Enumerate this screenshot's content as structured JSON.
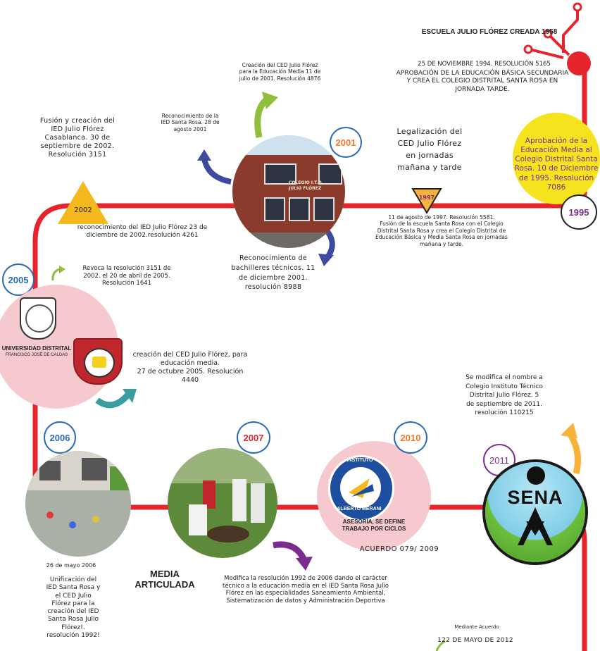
{
  "header": {
    "school_title": "ESCUELA JULIO FLÓREZ  CREADA 1958"
  },
  "colors": {
    "timeline_red": "#e5242b",
    "pink_circle": "#f6c9ce",
    "yellow": "#f5e31d",
    "purple": "#7b2d8e",
    "blue": "#2a6bb5",
    "green": "#8fbf3d",
    "teal": "#3a9ea0",
    "orange": "#f7b23a",
    "navy": "#3d4aa0"
  },
  "events": {
    "e1994_date": "25 DE NOVIEMBRE 1994. RESOLUCIÓN 5165",
    "e1994_text": "APROBACIÓN DE LA EDUCACIÓN BÁSICA SECUNDARIA\nY CREA EL COLEGIO DISTRITAL SANTA ROSA EN\nJORNADA TARDE.",
    "e1995_text": "Aprobación de la Educación Media al Colegio Distrital Santa Rosa. 10 de Diciembre de 1995. Resolución 7086",
    "e1995_year": "1995",
    "e1997_legal": "Legalización del\nCED Julio Flórez\nen jornadas\nmañana y tarde",
    "e1997_year": "1997",
    "e1997_text": "11 de agosto de 1997. Resolución 5581.\nFusión de la escuela Santa Rosa con el Colegio\nDistrital Santa Rosa y crea el Colegio Distrital de\nEducación Básica y Media Santa Rosa en jornadas\nmañana y tarde.",
    "e2001_year": "2001",
    "e2001_creation": "Creación del CED Julio Flórez\npara la Educación Media 11 de\njulio de 2001. Resolución 4876",
    "e2001_recognition": "Reconocimiento de la\nIED Santa Rosa. 28 de\nagosto 2001",
    "e2001_bachilleres": "Reconocimiento de\nbachilleres técnicos. 11\nde diciembre 2001.\nresolución 8988",
    "e2002_fusion": "Fusión y creación del\nIED Julio Flórez\nCasablanca.  30 de\nseptiembre de  2002.\nResolución 3151",
    "e2002_year": "2002",
    "e2002_recognition": "reconocimiento del IED Julio Flórez  23 de\ndiciembre de 2002.resolución 4261",
    "e2005_year": "2005",
    "e2005_revoke": "Revoca la resolución 3151 de\n2002. el 20 de abril de 2005.\nResolución 1641",
    "e2005_creation": "creación del CED Julio Flórez, para\neducación media.\n27 de octubre 2005. Resolución\n4440",
    "e2006_year": "2006",
    "e2006_date": "26 de mayo 2006",
    "e2006_text": "Unificación del\nIED Santa Rosa y\nel CED Julio\nFlórez para la\ncreación del IED\nSanta Rosa Julio\nFlórez!.\nresolución 1992!",
    "e2007_year": "2007",
    "media_articulada": "MEDIA\nARTICULADA",
    "e2007_text": "Modifica la resolución 1992 de 2006  dando el carácter\ntécnico a la educación media en el IED Santa Rosa Julio\nFlórez en las especialidades Saneamiento Ambiental,\nSistematización de datos y Administración Deportiva",
    "e2010_year": "2010",
    "e2010_text": "ASESORÍA, SE DEFINE\nTRABAJO POR CICLOS",
    "e2010_agreement": "ACUERDO 079/ 2009",
    "e2011_year": "2011",
    "e2011_text": "Se modifica el nombre a\nColegio Instituto Técnico\nDistrital Julio Flórez. 5\nde septiembre de 2011.\nresolución 110215",
    "e2012_label": "Mediante   Acuerdo",
    "e2012_date": "122 DE  MAYO DE 2012"
  },
  "logos": {
    "udistrital_name": "UNIVERSIDAD DISTRITAL",
    "udistrital_sub": "FRANCISCO JOSÉ DE CALDAS",
    "merani_top": "INSTITUTO",
    "merani_bottom": "ALBERTO MERANI",
    "sena": "SENA",
    "building_sign": "COLEGIO I.T.D.\nJULIO FLÓREZ"
  }
}
